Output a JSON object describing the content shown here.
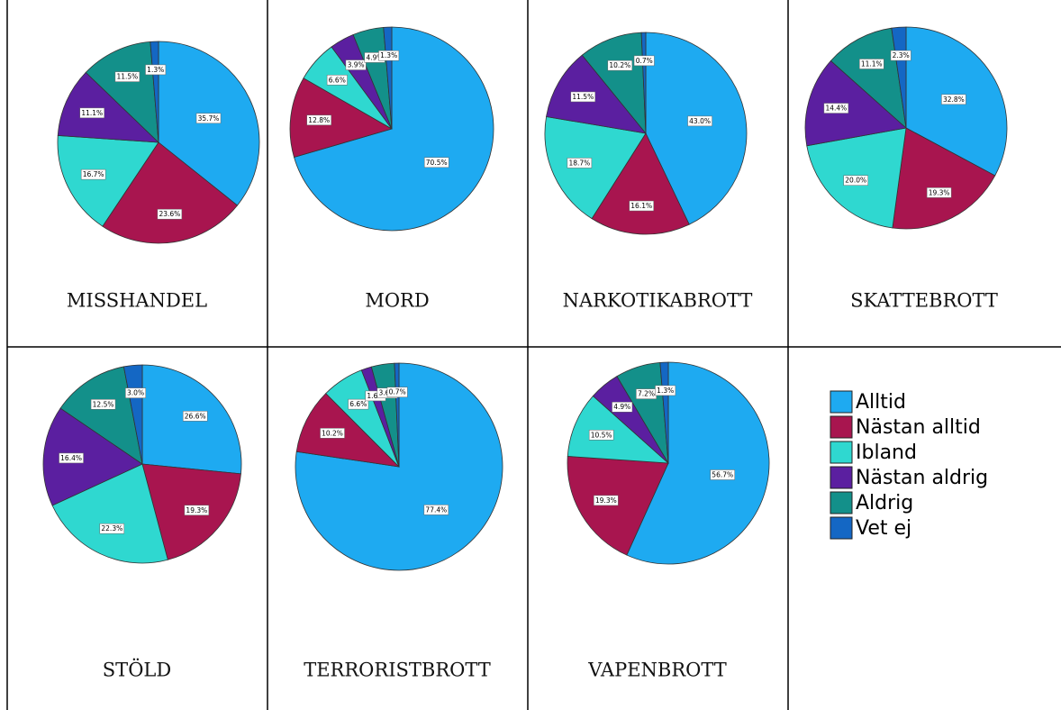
{
  "chart_data": [
    {
      "type": "pie",
      "title": "MISSHANDEL",
      "categories": [
        "Alltid",
        "Nästan alltid",
        "Ibland",
        "Nästan aldrig",
        "Aldrig",
        "Vet ej"
      ],
      "colors": [
        "#1eaaf1",
        "#a8154f",
        "#2fd8d0",
        "#5b1fa0",
        "#13908a",
        "#1467c4"
      ],
      "values": [
        35.7,
        23.6,
        16.7,
        11.1,
        11.5,
        1.3
      ],
      "value_labels": [
        "35.7%",
        "23.6%",
        "16.7%",
        "11.1%",
        "11.5%",
        "1.3%"
      ]
    },
    {
      "type": "pie",
      "title": "MORD",
      "categories": [
        "Alltid",
        "Nästan alltid",
        "Ibland",
        "Nästan aldrig",
        "Aldrig",
        "Vet ej"
      ],
      "colors": [
        "#1eaaf1",
        "#a8154f",
        "#2fd8d0",
        "#5b1fa0",
        "#13908a",
        "#1467c4"
      ],
      "values": [
        70.5,
        12.8,
        6.6,
        3.9,
        4.9,
        1.3
      ],
      "value_labels": [
        "70.5%",
        "12.8%",
        "6.6%",
        "3.9%",
        "4.9%",
        "1.3%"
      ]
    },
    {
      "type": "pie",
      "title": "NARKOTIKABROTT",
      "categories": [
        "Alltid",
        "Nästan alltid",
        "Ibland",
        "Nästan aldrig",
        "Aldrig",
        "Vet ej"
      ],
      "colors": [
        "#1eaaf1",
        "#a8154f",
        "#2fd8d0",
        "#5b1fa0",
        "#13908a",
        "#1467c4"
      ],
      "values": [
        43.0,
        16.1,
        18.7,
        11.5,
        10.2,
        0.7
      ],
      "value_labels": [
        "43.0%",
        "16.1%",
        "18.7%",
        "11.5%",
        "10.2%",
        "0.7%"
      ]
    },
    {
      "type": "pie",
      "title": "SKATTEBROTT",
      "categories": [
        "Alltid",
        "Nästan alltid",
        "Ibland",
        "Nästan aldrig",
        "Aldrig",
        "Vet ej"
      ],
      "colors": [
        "#1eaaf1",
        "#a8154f",
        "#2fd8d0",
        "#5b1fa0",
        "#13908a",
        "#1467c4"
      ],
      "values": [
        32.8,
        19.3,
        20.0,
        14.4,
        11.1,
        2.3
      ],
      "value_labels": [
        "32.8%",
        "19.3%",
        "20.0%",
        "14.4%",
        "11.1%",
        "2.3%"
      ]
    },
    {
      "type": "pie",
      "title": "STÖLD",
      "categories": [
        "Alltid",
        "Nästan alltid",
        "Ibland",
        "Nästan aldrig",
        "Aldrig",
        "Vet ej"
      ],
      "colors": [
        "#1eaaf1",
        "#a8154f",
        "#2fd8d0",
        "#5b1fa0",
        "#13908a",
        "#1467c4"
      ],
      "values": [
        26.6,
        19.3,
        22.3,
        16.4,
        12.5,
        3.0
      ],
      "value_labels": [
        "26.6%",
        "19.3%",
        "22.3%",
        "16.4%",
        "12.5%",
        "3.0%"
      ]
    },
    {
      "type": "pie",
      "title": "TERRORISTBROTT",
      "categories": [
        "Alltid",
        "Nästan alltid",
        "Ibland",
        "Nästan aldrig",
        "Aldrig",
        "Vet ej"
      ],
      "colors": [
        "#1eaaf1",
        "#a8154f",
        "#2fd8d0",
        "#5b1fa0",
        "#13908a",
        "#1467c4"
      ],
      "values": [
        77.4,
        10.2,
        6.6,
        1.6,
        3.6,
        0.7
      ],
      "value_labels": [
        "77.4%",
        "10.2%",
        "6.6%",
        "1.6%",
        "3.6%",
        "0.7%"
      ]
    },
    {
      "type": "pie",
      "title": "VAPENBROTT",
      "categories": [
        "Alltid",
        "Nästan alltid",
        "Ibland",
        "Nästan aldrig",
        "Aldrig",
        "Vet ej"
      ],
      "colors": [
        "#1eaaf1",
        "#a8154f",
        "#2fd8d0",
        "#5b1fa0",
        "#13908a",
        "#1467c4"
      ],
      "values": [
        56.7,
        19.3,
        10.5,
        4.9,
        7.2,
        1.3
      ],
      "value_labels": [
        "56.7%",
        "19.3%",
        "10.5%",
        "4.9%",
        "7.2%",
        "1.3%"
      ]
    }
  ]
}
